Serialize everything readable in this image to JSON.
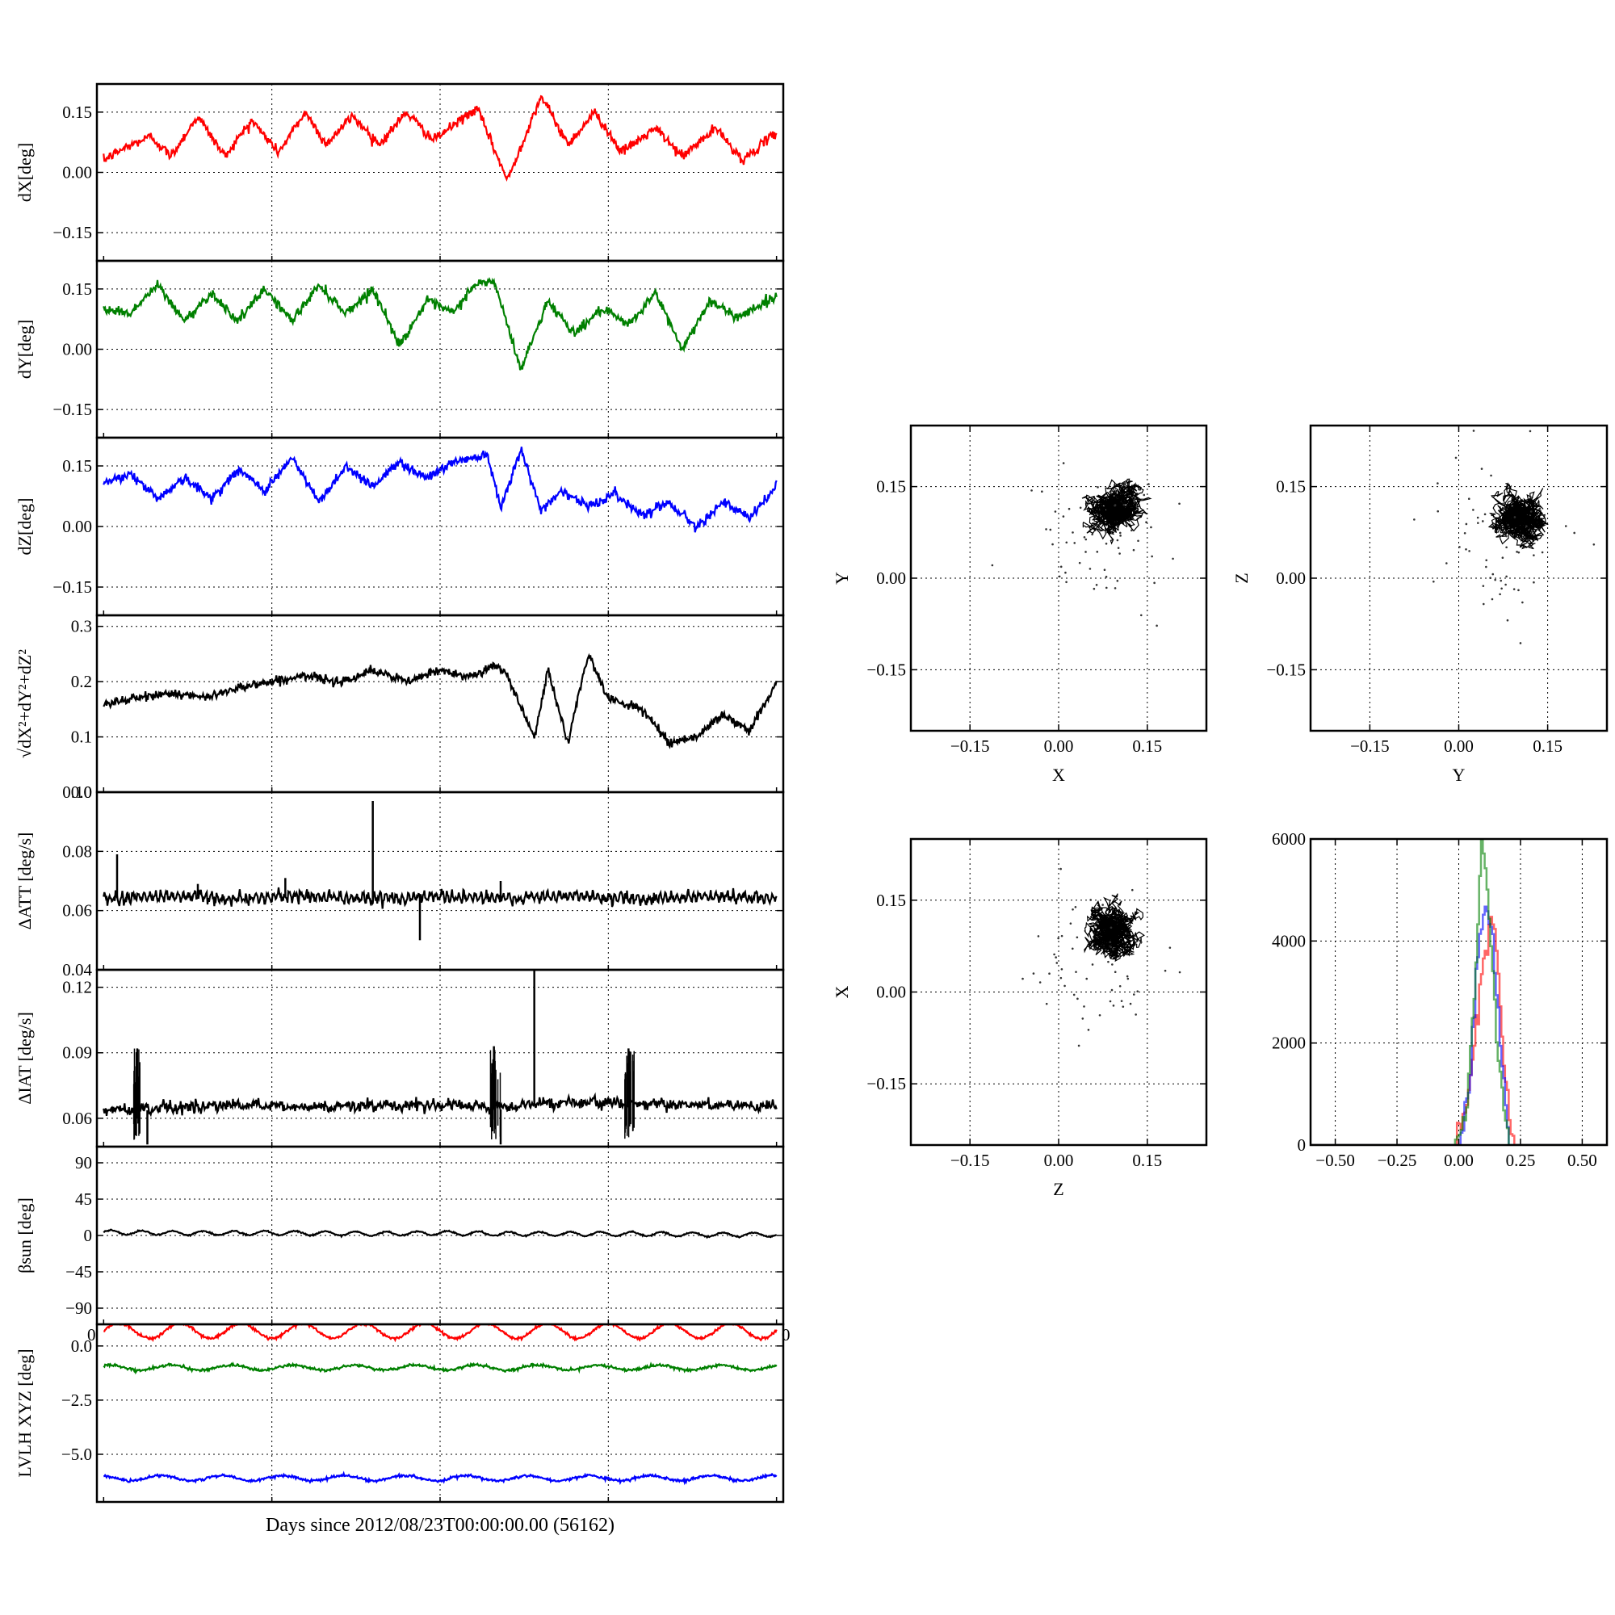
{
  "figure": {
    "xlabel": "Days since 2012/08/23T00:00:00.00 (56162)"
  },
  "chart_data": [
    {
      "id": "dx",
      "type": "line",
      "ylabel": "dX[deg]",
      "ylim": [
        -0.22,
        0.22
      ],
      "yticks": [
        -0.15,
        0.0,
        0.15
      ],
      "ytick_labels": [
        "−0.15",
        "0.00",
        "0.15"
      ],
      "grid": true,
      "series": [
        {
          "color": "#ff0000",
          "x": [
            0,
            0.03,
            0.07,
            0.1,
            0.14,
            0.18,
            0.22,
            0.26,
            0.3,
            0.33,
            0.37,
            0.41,
            0.45,
            0.49,
            0.53,
            0.555,
            0.6,
            0.65,
            0.69,
            0.73,
            0.77,
            0.82,
            0.86,
            0.91,
            0.95,
            1.0
          ],
          "y": [
            0.03,
            0.06,
            0.09,
            0.04,
            0.14,
            0.04,
            0.13,
            0.05,
            0.15,
            0.07,
            0.14,
            0.07,
            0.15,
            0.08,
            0.13,
            0.16,
            -0.02,
            0.19,
            0.07,
            0.15,
            0.05,
            0.11,
            0.04,
            0.11,
            0.03,
            0.1
          ]
        }
      ]
    },
    {
      "id": "dy",
      "type": "line",
      "ylabel": "dY[deg]",
      "ylim": [
        -0.22,
        0.22
      ],
      "yticks": [
        -0.15,
        0.0,
        0.15
      ],
      "ytick_labels": [
        "−0.15",
        "0.00",
        "0.15"
      ],
      "grid": true,
      "series": [
        {
          "color": "#008000",
          "x": [
            0,
            0.04,
            0.08,
            0.12,
            0.16,
            0.2,
            0.24,
            0.28,
            0.32,
            0.36,
            0.4,
            0.44,
            0.48,
            0.52,
            0.55,
            0.58,
            0.62,
            0.66,
            0.7,
            0.74,
            0.78,
            0.82,
            0.86,
            0.9,
            0.94,
            1.0
          ],
          "y": [
            0.1,
            0.09,
            0.16,
            0.07,
            0.14,
            0.07,
            0.15,
            0.07,
            0.16,
            0.09,
            0.15,
            0.01,
            0.12,
            0.09,
            0.16,
            0.17,
            -0.05,
            0.12,
            0.04,
            0.1,
            0.06,
            0.14,
            0.0,
            0.12,
            0.08,
            0.13
          ]
        }
      ]
    },
    {
      "id": "dz",
      "type": "line",
      "ylabel": "dZ[deg]",
      "ylim": [
        -0.22,
        0.22
      ],
      "yticks": [
        -0.15,
        0.0,
        0.15
      ],
      "ytick_labels": [
        "−0.15",
        "0.00",
        "0.15"
      ],
      "grid": true,
      "series": [
        {
          "color": "#0000ff",
          "x": [
            0,
            0.04,
            0.08,
            0.12,
            0.16,
            0.2,
            0.24,
            0.28,
            0.32,
            0.36,
            0.4,
            0.44,
            0.48,
            0.52,
            0.57,
            0.59,
            0.62,
            0.65,
            0.68,
            0.72,
            0.76,
            0.8,
            0.84,
            0.88,
            0.92,
            0.96,
            1.0
          ],
          "y": [
            0.11,
            0.13,
            0.07,
            0.12,
            0.07,
            0.14,
            0.09,
            0.17,
            0.06,
            0.15,
            0.1,
            0.16,
            0.12,
            0.16,
            0.18,
            0.05,
            0.19,
            0.04,
            0.09,
            0.05,
            0.08,
            0.03,
            0.06,
            0.0,
            0.06,
            0.02,
            0.1
          ]
        }
      ]
    },
    {
      "id": "dr",
      "type": "line",
      "ylabel": "√dX²+dY²+dZ²",
      "ylim": [
        0.0,
        0.32
      ],
      "yticks": [
        0.0,
        0.1,
        0.2,
        0.3
      ],
      "ytick_labels": [
        "0.0",
        "0.1",
        "0.2",
        "0.3"
      ],
      "grid": true,
      "series": [
        {
          "color": "#000000",
          "x": [
            0,
            0.05,
            0.1,
            0.15,
            0.2,
            0.25,
            0.3,
            0.35,
            0.4,
            0.45,
            0.5,
            0.55,
            0.58,
            0.6,
            0.64,
            0.66,
            0.69,
            0.72,
            0.75,
            0.8,
            0.84,
            0.88,
            0.92,
            0.96,
            1.0
          ],
          "y": [
            0.16,
            0.17,
            0.18,
            0.17,
            0.19,
            0.2,
            0.21,
            0.2,
            0.22,
            0.2,
            0.22,
            0.21,
            0.23,
            0.21,
            0.1,
            0.22,
            0.09,
            0.25,
            0.17,
            0.15,
            0.09,
            0.1,
            0.14,
            0.11,
            0.2
          ]
        }
      ]
    },
    {
      "id": "datt",
      "type": "line",
      "ylabel": "ΔATT [deg/s]",
      "ylim": [
        0.04,
        0.1
      ],
      "yticks": [
        0.04,
        0.06,
        0.08,
        0.1
      ],
      "ytick_labels": [
        "0.04",
        "0.06",
        "0.08",
        "0.10"
      ],
      "grid": true,
      "spikes": [
        {
          "x": 0.02,
          "y": 0.079
        },
        {
          "x": 0.14,
          "y": 0.069
        },
        {
          "x": 0.27,
          "y": 0.071
        },
        {
          "x": 0.4,
          "y": 0.097
        },
        {
          "x": 0.47,
          "y": 0.05
        },
        {
          "x": 0.59,
          "y": 0.07
        }
      ],
      "series": [
        {
          "color": "#000000",
          "x": [
            0,
            0.1,
            0.2,
            0.3,
            0.4,
            0.5,
            0.6,
            0.7,
            0.8,
            0.9,
            1.0
          ],
          "y": [
            0.064,
            0.065,
            0.064,
            0.065,
            0.064,
            0.065,
            0.064,
            0.065,
            0.064,
            0.065,
            0.064
          ]
        }
      ]
    },
    {
      "id": "diat",
      "type": "line",
      "ylabel": "ΔIAT [deg/s]",
      "ylim": [
        0.047,
        0.128
      ],
      "yticks": [
        0.06,
        0.09,
        0.12
      ],
      "ytick_labels": [
        "0.06",
        "0.09",
        "0.12"
      ],
      "grid": true,
      "spikes": [
        {
          "x": 0.05,
          "y": 0.092
        },
        {
          "x": 0.065,
          "y": 0.048
        },
        {
          "x": 0.58,
          "y": 0.093
        },
        {
          "x": 0.59,
          "y": 0.048
        },
        {
          "x": 0.64,
          "y": 0.128
        },
        {
          "x": 0.78,
          "y": 0.092
        }
      ],
      "series": [
        {
          "color": "#000000",
          "x": [
            0,
            0.1,
            0.2,
            0.3,
            0.4,
            0.5,
            0.6,
            0.64,
            0.7,
            0.8,
            0.9,
            1.0
          ],
          "y": [
            0.063,
            0.064,
            0.065,
            0.064,
            0.065,
            0.065,
            0.064,
            0.066,
            0.066,
            0.066,
            0.065,
            0.064
          ]
        }
      ]
    },
    {
      "id": "beta",
      "type": "line",
      "ylabel": "βsun [deg]",
      "ylim": [
        -110,
        110
      ],
      "yticks": [
        -90,
        -45,
        0,
        45,
        90
      ],
      "ytick_labels": [
        "−90",
        "−45",
        "0",
        "45",
        "90"
      ],
      "grid": true,
      "series": [
        {
          "color": "#000000",
          "x": [
            0,
            0.1,
            0.2,
            0.3,
            0.4,
            0.5,
            0.6,
            0.7,
            0.8,
            0.9,
            1.0
          ],
          "y": [
            4,
            3,
            3,
            3,
            2,
            3,
            2,
            2,
            2,
            1,
            1
          ]
        }
      ]
    },
    {
      "id": "lvlh",
      "type": "line",
      "ylabel": "LVLH XYZ [deg]",
      "ylim": [
        -7.2,
        1.0
      ],
      "yticks": [
        -5.0,
        -2.5,
        0.0
      ],
      "ytick_labels": [
        "−5.0",
        "−2.5",
        "0.0"
      ],
      "grid": true,
      "corner_left": "0",
      "corner_right": "0",
      "series": [
        {
          "color": "#ff0000",
          "x": [
            0,
            0.5,
            1.0
          ],
          "y": [
            0.7,
            0.7,
            0.7
          ]
        },
        {
          "color": "#008000",
          "x": [
            0,
            0.5,
            1.0
          ],
          "y": [
            -1.0,
            -1.0,
            -1.0
          ]
        },
        {
          "color": "#0000ff",
          "x": [
            0,
            0.5,
            1.0
          ],
          "y": [
            -6.1,
            -6.1,
            -6.1
          ]
        }
      ]
    },
    {
      "id": "xy",
      "type": "scatter",
      "xlabel": "X",
      "ylabel": "Y",
      "xlim": [
        -0.25,
        0.25
      ],
      "ylim": [
        -0.25,
        0.25
      ],
      "xticks": [
        -0.15,
        0.0,
        0.15
      ],
      "yticks": [
        -0.15,
        0.0,
        0.15
      ],
      "xtick_labels": [
        "−0.15",
        "0.00",
        "0.15"
      ],
      "ytick_labels": [
        "−0.15",
        "0.00",
        "0.15"
      ],
      "grid": true,
      "cluster": {
        "cx": 0.1,
        "cy": 0.11,
        "sx": 0.035,
        "sy": 0.035
      },
      "series": [
        {
          "color": "#000000"
        }
      ]
    },
    {
      "id": "yz",
      "type": "scatter",
      "xlabel": "Y",
      "ylabel": "Z",
      "xlim": [
        -0.25,
        0.25
      ],
      "ylim": [
        -0.25,
        0.25
      ],
      "xticks": [
        -0.15,
        0.0,
        0.15
      ],
      "yticks": [
        -0.15,
        0.0,
        0.15
      ],
      "xtick_labels": [
        "−0.15",
        "0.00",
        "0.15"
      ],
      "ytick_labels": [
        "−0.15",
        "0.00",
        "0.15"
      ],
      "grid": true,
      "cluster": {
        "cx": 0.1,
        "cy": 0.1,
        "sx": 0.035,
        "sy": 0.04
      },
      "series": [
        {
          "color": "#000000"
        }
      ]
    },
    {
      "id": "zx",
      "type": "scatter",
      "xlabel": "Z",
      "ylabel": "X",
      "xlim": [
        -0.25,
        0.25
      ],
      "ylim": [
        -0.25,
        0.25
      ],
      "xticks": [
        -0.15,
        0.0,
        0.15
      ],
      "yticks": [
        -0.15,
        0.0,
        0.15
      ],
      "xtick_labels": [
        "−0.15",
        "0.00",
        "0.15"
      ],
      "ytick_labels": [
        "−0.15",
        "0.00",
        "0.15"
      ],
      "grid": true,
      "cluster": {
        "cx": 0.1,
        "cy": 0.1,
        "sx": 0.04,
        "sy": 0.03
      },
      "series": [
        {
          "color": "#000000"
        }
      ]
    },
    {
      "id": "hist",
      "type": "line",
      "xlim": [
        -0.6,
        0.6
      ],
      "ylim": [
        0,
        6000
      ],
      "xticks": [
        -0.5,
        -0.25,
        0.0,
        0.25,
        0.5
      ],
      "yticks": [
        0,
        2000,
        4000,
        6000
      ],
      "xtick_labels": [
        "−0.50",
        "−0.25",
        "0.00",
        "0.25",
        "0.50"
      ],
      "ytick_labels": [
        "0",
        "2000",
        "4000",
        "6000"
      ],
      "grid": true,
      "series": [
        {
          "color": "#ff0000",
          "x": [
            -0.6,
            -0.02,
            0.02,
            0.06,
            0.1,
            0.13,
            0.15,
            0.18,
            0.22,
            0.6
          ],
          "y": [
            0,
            0,
            600,
            2000,
            3600,
            4300,
            3800,
            1500,
            0,
            0
          ]
        },
        {
          "color": "#0000ff",
          "x": [
            -0.6,
            0.0,
            0.04,
            0.08,
            0.11,
            0.13,
            0.16,
            0.2,
            0.6
          ],
          "y": [
            0,
            0,
            1200,
            4300,
            4800,
            4200,
            2500,
            0,
            0
          ]
        },
        {
          "color": "#008000",
          "x": [
            -0.6,
            -0.02,
            0.03,
            0.07,
            0.09,
            0.12,
            0.15,
            0.2,
            0.6
          ],
          "y": [
            0,
            0,
            800,
            3500,
            6050,
            4500,
            2000,
            0,
            0
          ]
        }
      ]
    }
  ]
}
